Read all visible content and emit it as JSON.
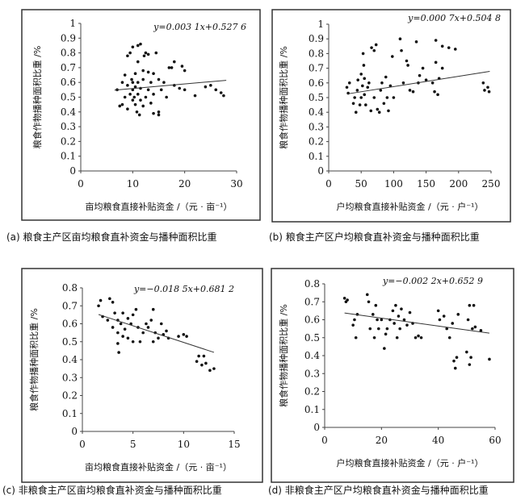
{
  "chart_data": [
    {
      "type": "scatter",
      "caption": "(a) 粮食主产区亩均粮食直补资金与播种面积比重",
      "equation": "y=0.003 1x+0.527 6",
      "xlabel": "亩均粮食直接补贴资金 /（元 · 亩⁻¹）",
      "ylabel": "粮食作物播种面积比重 /%",
      "xlim": [
        0,
        30
      ],
      "ylim": [
        0,
        1
      ],
      "xticks": [
        "0",
        "10",
        "20",
        "30"
      ],
      "yticks": [
        "0",
        "0.1",
        "0.2",
        "0.3",
        "0.4",
        "0.5",
        "0.6",
        "0.7",
        "0.8",
        "0.9",
        "1"
      ],
      "trend": {
        "slope": 0.0031,
        "intercept": 0.5276,
        "xrange": [
          6.5,
          28
        ]
      },
      "points": [
        [
          7,
          0.55
        ],
        [
          7.5,
          0.44
        ],
        [
          8,
          0.45
        ],
        [
          8,
          0.6
        ],
        [
          8.5,
          0.5
        ],
        [
          8.5,
          0.65
        ],
        [
          9,
          0.42
        ],
        [
          9,
          0.58
        ],
        [
          9,
          0.78
        ],
        [
          9.5,
          0.52
        ],
        [
          9.5,
          0.8
        ],
        [
          9.8,
          0.62
        ],
        [
          10,
          0.48
        ],
        [
          10,
          0.55
        ],
        [
          10,
          0.6
        ],
        [
          10,
          0.84
        ],
        [
          10.3,
          0.5
        ],
        [
          10.5,
          0.45
        ],
        [
          10.5,
          0.57
        ],
        [
          10.5,
          0.66
        ],
        [
          10.8,
          0.4
        ],
        [
          11,
          0.52
        ],
        [
          11,
          0.6
        ],
        [
          11,
          0.74
        ],
        [
          11,
          0.85
        ],
        [
          11.3,
          0.38
        ],
        [
          11.5,
          0.48
        ],
        [
          11.5,
          0.56
        ],
        [
          11.5,
          0.86
        ],
        [
          12,
          0.44
        ],
        [
          12,
          0.62
        ],
        [
          12,
          0.68
        ],
        [
          12.2,
          0.78
        ],
        [
          12.5,
          0.5
        ],
        [
          12.5,
          0.8
        ],
        [
          13,
          0.55
        ],
        [
          13,
          0.67
        ],
        [
          13,
          0.79
        ],
        [
          13.5,
          0.46
        ],
        [
          13.5,
          0.6
        ],
        [
          14,
          0.52
        ],
        [
          14,
          0.39
        ],
        [
          14,
          0.66
        ],
        [
          14.5,
          0.8
        ],
        [
          15,
          0.38
        ],
        [
          15,
          0.4
        ],
        [
          15,
          0.62
        ],
        [
          15.5,
          0.55
        ],
        [
          16,
          0.6
        ],
        [
          16.5,
          0.5
        ],
        [
          17,
          0.7
        ],
        [
          17.5,
          0.7
        ],
        [
          18,
          0.74
        ],
        [
          18,
          0.58
        ],
        [
          19,
          0.56
        ],
        [
          19.5,
          0.71
        ],
        [
          20,
          0.68
        ],
        [
          20,
          0.55
        ],
        [
          22,
          0.51
        ],
        [
          24,
          0.57
        ],
        [
          25,
          0.58
        ],
        [
          26,
          0.55
        ],
        [
          27,
          0.53
        ],
        [
          27.5,
          0.51
        ]
      ]
    },
    {
      "type": "scatter",
      "caption": "(b) 粮食主产区户均粮食直补资金与播种面积比重",
      "equation": "y=0.000 7x+0.504 8",
      "xlabel": "户均粮食直接补贴资金 /（元 · 户⁻¹）",
      "ylabel": "粮食作物播种面积比重 /%",
      "xlim": [
        0,
        250
      ],
      "ylim": [
        0,
        1
      ],
      "xticks": [
        "0",
        "50",
        "100",
        "150",
        "200",
        "250"
      ],
      "yticks": [
        "0",
        "0.1",
        "0.2",
        "0.3",
        "0.4",
        "0.5",
        "0.6",
        "0.7",
        "0.8",
        "0.9",
        "1"
      ],
      "trend": {
        "slope": 0.0007,
        "intercept": 0.5048,
        "xrange": [
          28,
          248
        ]
      },
      "points": [
        [
          28,
          0.57
        ],
        [
          30,
          0.53
        ],
        [
          32,
          0.6
        ],
        [
          38,
          0.46
        ],
        [
          40,
          0.5
        ],
        [
          42,
          0.4
        ],
        [
          44,
          0.55
        ],
        [
          45,
          0.62
        ],
        [
          48,
          0.45
        ],
        [
          50,
          0.5
        ],
        [
          50,
          0.66
        ],
        [
          52,
          0.58
        ],
        [
          53,
          0.8
        ],
        [
          54,
          0.72
        ],
        [
          55,
          0.52
        ],
        [
          55,
          0.63
        ],
        [
          57,
          0.45
        ],
        [
          60,
          0.57
        ],
        [
          62,
          0.6
        ],
        [
          65,
          0.41
        ],
        [
          66,
          0.84
        ],
        [
          70,
          0.5
        ],
        [
          70,
          0.82
        ],
        [
          73,
          0.86
        ],
        [
          75,
          0.42
        ],
        [
          78,
          0.4
        ],
        [
          80,
          0.55
        ],
        [
          82,
          0.6
        ],
        [
          85,
          0.46
        ],
        [
          88,
          0.64
        ],
        [
          90,
          0.5
        ],
        [
          92,
          0.41
        ],
        [
          95,
          0.58
        ],
        [
          98,
          0.78
        ],
        [
          100,
          0.5
        ],
        [
          110,
          0.9
        ],
        [
          112,
          0.82
        ],
        [
          115,
          0.6
        ],
        [
          120,
          0.75
        ],
        [
          122,
          0.72
        ],
        [
          125,
          0.55
        ],
        [
          130,
          0.54
        ],
        [
          135,
          0.88
        ],
        [
          138,
          0.6
        ],
        [
          140,
          0.65
        ],
        [
          145,
          0.7
        ],
        [
          150,
          0.62
        ],
        [
          160,
          0.6
        ],
        [
          163,
          0.54
        ],
        [
          165,
          0.89
        ],
        [
          165,
          0.74
        ],
        [
          168,
          0.52
        ],
        [
          170,
          0.63
        ],
        [
          175,
          0.7
        ],
        [
          175,
          0.85
        ],
        [
          185,
          0.84
        ],
        [
          195,
          0.83
        ],
        [
          238,
          0.6
        ],
        [
          240,
          0.55
        ],
        [
          245,
          0.57
        ],
        [
          247,
          0.54
        ]
      ]
    },
    {
      "type": "scatter",
      "caption": "(c) 非粮食主产区亩均粮食直补资金与播种面积比重",
      "equation": "y=−0.018 5x+0.681 2",
      "xlabel": "亩均粮食直接补贴资金 /（元 · 亩⁻¹）",
      "ylabel": "粮食作物播种面积比重 /%",
      "xlim": [
        0,
        15
      ],
      "ylim": [
        0,
        0.8
      ],
      "xticks": [
        "0",
        "5",
        "10",
        "15"
      ],
      "yticks": [
        "0",
        "0.1",
        "0.2",
        "0.3",
        "0.4",
        "0.5",
        "0.6",
        "0.7",
        "0.8"
      ],
      "trend": {
        "slope": -0.0185,
        "intercept": 0.6812,
        "xrange": [
          1.6,
          13
        ]
      },
      "points": [
        [
          1.6,
          0.7
        ],
        [
          1.8,
          0.73
        ],
        [
          2,
          0.64
        ],
        [
          2.5,
          0.62
        ],
        [
          2.7,
          0.74
        ],
        [
          3,
          0.58
        ],
        [
          3,
          0.72
        ],
        [
          3.2,
          0.66
        ],
        [
          3.5,
          0.49
        ],
        [
          3.5,
          0.55
        ],
        [
          3.5,
          0.62
        ],
        [
          3.6,
          0.44
        ],
        [
          3.8,
          0.6
        ],
        [
          4,
          0.53
        ],
        [
          4,
          0.66
        ],
        [
          4.2,
          0.57
        ],
        [
          4.5,
          0.63
        ],
        [
          4.5,
          0.52
        ],
        [
          4.8,
          0.6
        ],
        [
          5,
          0.5
        ],
        [
          5,
          0.65
        ],
        [
          5.3,
          0.68
        ],
        [
          5.5,
          0.58
        ],
        [
          5.7,
          0.5
        ],
        [
          6,
          0.55
        ],
        [
          6.3,
          0.6
        ],
        [
          6.5,
          0.58
        ],
        [
          6.8,
          0.62
        ],
        [
          7,
          0.5
        ],
        [
          7,
          0.68
        ],
        [
          7.2,
          0.55
        ],
        [
          7.5,
          0.52
        ],
        [
          7.8,
          0.6
        ],
        [
          8,
          0.54
        ],
        [
          8.3,
          0.56
        ],
        [
          8.5,
          0.52
        ],
        [
          9.5,
          0.53
        ],
        [
          10,
          0.54
        ],
        [
          10.3,
          0.53
        ],
        [
          11.3,
          0.39
        ],
        [
          11.5,
          0.42
        ],
        [
          11.8,
          0.37
        ],
        [
          12,
          0.42
        ],
        [
          12.2,
          0.38
        ],
        [
          12.6,
          0.34
        ],
        [
          13,
          0.35
        ]
      ]
    },
    {
      "type": "scatter",
      "caption": "(d) 非粮食主产区户均粮食直补资金与播种面积比重",
      "equation": "y=−0.002 2x+0.652 9",
      "xlabel": "户均粮食直接补贴资金 /（元 · 户⁻¹）",
      "ylabel": "粮食作物播种面积比重 /%",
      "xlim": [
        0,
        60
      ],
      "ylim": [
        0,
        0.8
      ],
      "xticks": [
        "0",
        "20",
        "40",
        "60"
      ],
      "yticks": [
        "0",
        "0.1",
        "0.2",
        "0.3",
        "0.4",
        "0.5",
        "0.6",
        "0.7",
        "0.8"
      ],
      "trend": {
        "slope": -0.0022,
        "intercept": 0.6529,
        "xrange": [
          7,
          58
        ]
      },
      "points": [
        [
          7,
          0.72
        ],
        [
          7.5,
          0.7
        ],
        [
          8,
          0.71
        ],
        [
          10,
          0.57
        ],
        [
          10.5,
          0.6
        ],
        [
          11,
          0.5
        ],
        [
          11.5,
          0.63
        ],
        [
          15,
          0.74
        ],
        [
          15.5,
          0.7
        ],
        [
          16,
          0.55
        ],
        [
          17,
          0.63
        ],
        [
          17.5,
          0.5
        ],
        [
          18,
          0.68
        ],
        [
          18.5,
          0.6
        ],
        [
          19,
          0.55
        ],
        [
          20,
          0.6
        ],
        [
          21,
          0.44
        ],
        [
          21.5,
          0.52
        ],
        [
          22,
          0.55
        ],
        [
          23,
          0.6
        ],
        [
          24,
          0.65
        ],
        [
          24.5,
          0.58
        ],
        [
          25,
          0.68
        ],
        [
          25.5,
          0.5
        ],
        [
          26,
          0.62
        ],
        [
          26.5,
          0.55
        ],
        [
          27,
          0.66
        ],
        [
          28,
          0.6
        ],
        [
          29,
          0.57
        ],
        [
          30,
          0.64
        ],
        [
          31,
          0.58
        ],
        [
          32,
          0.5
        ],
        [
          33,
          0.51
        ],
        [
          34,
          0.5
        ],
        [
          40,
          0.65
        ],
        [
          40.5,
          0.6
        ],
        [
          42,
          0.62
        ],
        [
          43,
          0.55
        ],
        [
          44,
          0.5
        ],
        [
          45,
          0.58
        ],
        [
          45.5,
          0.37
        ],
        [
          46,
          0.33
        ],
        [
          46.5,
          0.39
        ],
        [
          47,
          0.63
        ],
        [
          50,
          0.42
        ],
        [
          50.5,
          0.6
        ],
        [
          51,
          0.68
        ],
        [
          51,
          0.35
        ],
        [
          51.5,
          0.39
        ],
        [
          52,
          0.55
        ],
        [
          52.5,
          0.68
        ],
        [
          53,
          0.56
        ],
        [
          55,
          0.54
        ],
        [
          58,
          0.38
        ]
      ]
    }
  ]
}
